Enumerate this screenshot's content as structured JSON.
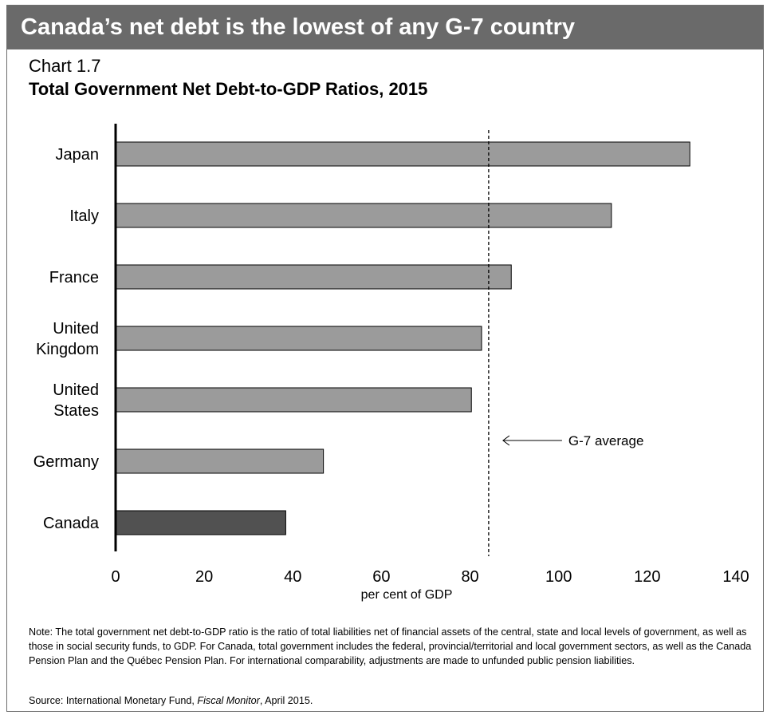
{
  "banner": {
    "title": "Canada’s net debt is the lowest of any G-7 country"
  },
  "chart_data": {
    "type": "bar",
    "orientation": "horizontal",
    "number_label": "Chart 1.7",
    "title": "Total Government Net Debt-to-GDP Ratios, 2015",
    "categories": [
      [
        "Japan"
      ],
      [
        "Italy"
      ],
      [
        "France"
      ],
      [
        "United",
        "Kingdom"
      ],
      [
        "United",
        "States"
      ],
      [
        "Germany"
      ],
      [
        "Canada"
      ]
    ],
    "values": [
      129.6,
      111.9,
      89.3,
      82.6,
      80.3,
      46.9,
      38.4
    ],
    "bar_colors": [
      "#9b9b9b",
      "#9b9b9b",
      "#9b9b9b",
      "#9b9b9b",
      "#9b9b9b",
      "#9b9b9b",
      "#515151"
    ],
    "xlabel": "per cent of GDP",
    "xlim": [
      0,
      140
    ],
    "xticks": [
      "0",
      "20",
      "40",
      "60",
      "80",
      "100",
      "120",
      "140"
    ],
    "reference_line": {
      "value": 84.2,
      "label": "G-7 average",
      "style": "dashed"
    },
    "grid": false,
    "legend": "none"
  },
  "notes": {
    "note": "Note: The total government net debt-to-GDP ratio is the ratio of total liabilities net of financial assets of the central, state and local levels of government, as well as those in social security funds, to GDP. For Canada, total government includes the federal, provincial/territorial and local government sectors, as well as the Canada Pension Plan and the Québec Pension Plan. For international comparability, adjustments are made to unfunded public pension liabilities.",
    "source_prefix": "Source: International Monetary Fund, ",
    "source_italic": "Fiscal Monitor",
    "source_suffix": ", April 2015."
  }
}
